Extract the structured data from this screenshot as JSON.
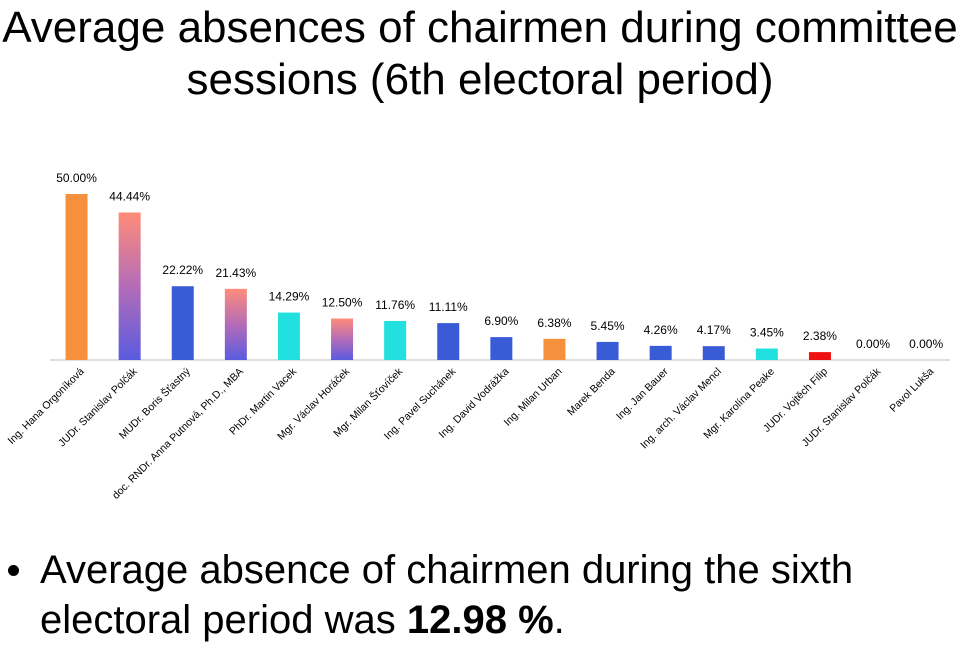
{
  "title": "Average absences of chairmen during committee sessions (6th electoral period)",
  "chart_data": {
    "type": "bar",
    "categories": [
      "Ing. Hana Orgoníková",
      "JUDr. Stanislav Polčák",
      "MUDr. Boris Šťastný",
      "doc. RNDr. Anna Putnová, Ph.D., MBA",
      "PhDr. Martin Vacek",
      "Mgr. Václav Horáček",
      "Mgr. Milan Šťovíček",
      "Ing. Pavel Suchánek",
      "Ing. David Vodrážka",
      "Ing. Milan Urban",
      "Marek Benda",
      "Ing. Jan Bauer",
      "Ing. arch. Václav Mencl",
      "Mgr. Karolína Peake",
      "JUDr. Vojtěch Filip",
      "JUDr. Stanislav Polčák",
      "Pavol Lukša"
    ],
    "values": [
      50.0,
      44.44,
      22.22,
      21.43,
      14.29,
      12.5,
      11.76,
      11.11,
      6.9,
      6.38,
      5.45,
      4.26,
      4.17,
      3.45,
      2.38,
      0.0,
      0.0
    ],
    "value_labels": [
      "50.00%",
      "44.44%",
      "22.22%",
      "21.43%",
      "14.29%",
      "12.50%",
      "11.76%",
      "11.11%",
      "6.90%",
      "6.38%",
      "5.45%",
      "4.26%",
      "4.17%",
      "3.45%",
      "2.38%",
      "0.00%",
      "0.00%"
    ],
    "colors": [
      "#F5913C",
      "#E8707F",
      "#3A5BD6",
      "#E8707F",
      "#22E0E0",
      "#E8707F",
      "#22E0E0",
      "#3A5BD6",
      "#3A5BD6",
      "#F5913C",
      "#3A5BD6",
      "#3A5BD6",
      "#3A5BD6",
      "#22E0E0",
      "#EE1111",
      "#3A5BD6",
      "#3A5BD6"
    ],
    "gradient_bars": [
      1,
      3,
      5
    ],
    "ylim": [
      0,
      50
    ],
    "xlabel": "",
    "ylabel": "",
    "grid": false
  },
  "summary": {
    "prefix": "Average absence of chairmen during the sixth electoral period was ",
    "value": "12.98 %",
    "suffix": "."
  }
}
